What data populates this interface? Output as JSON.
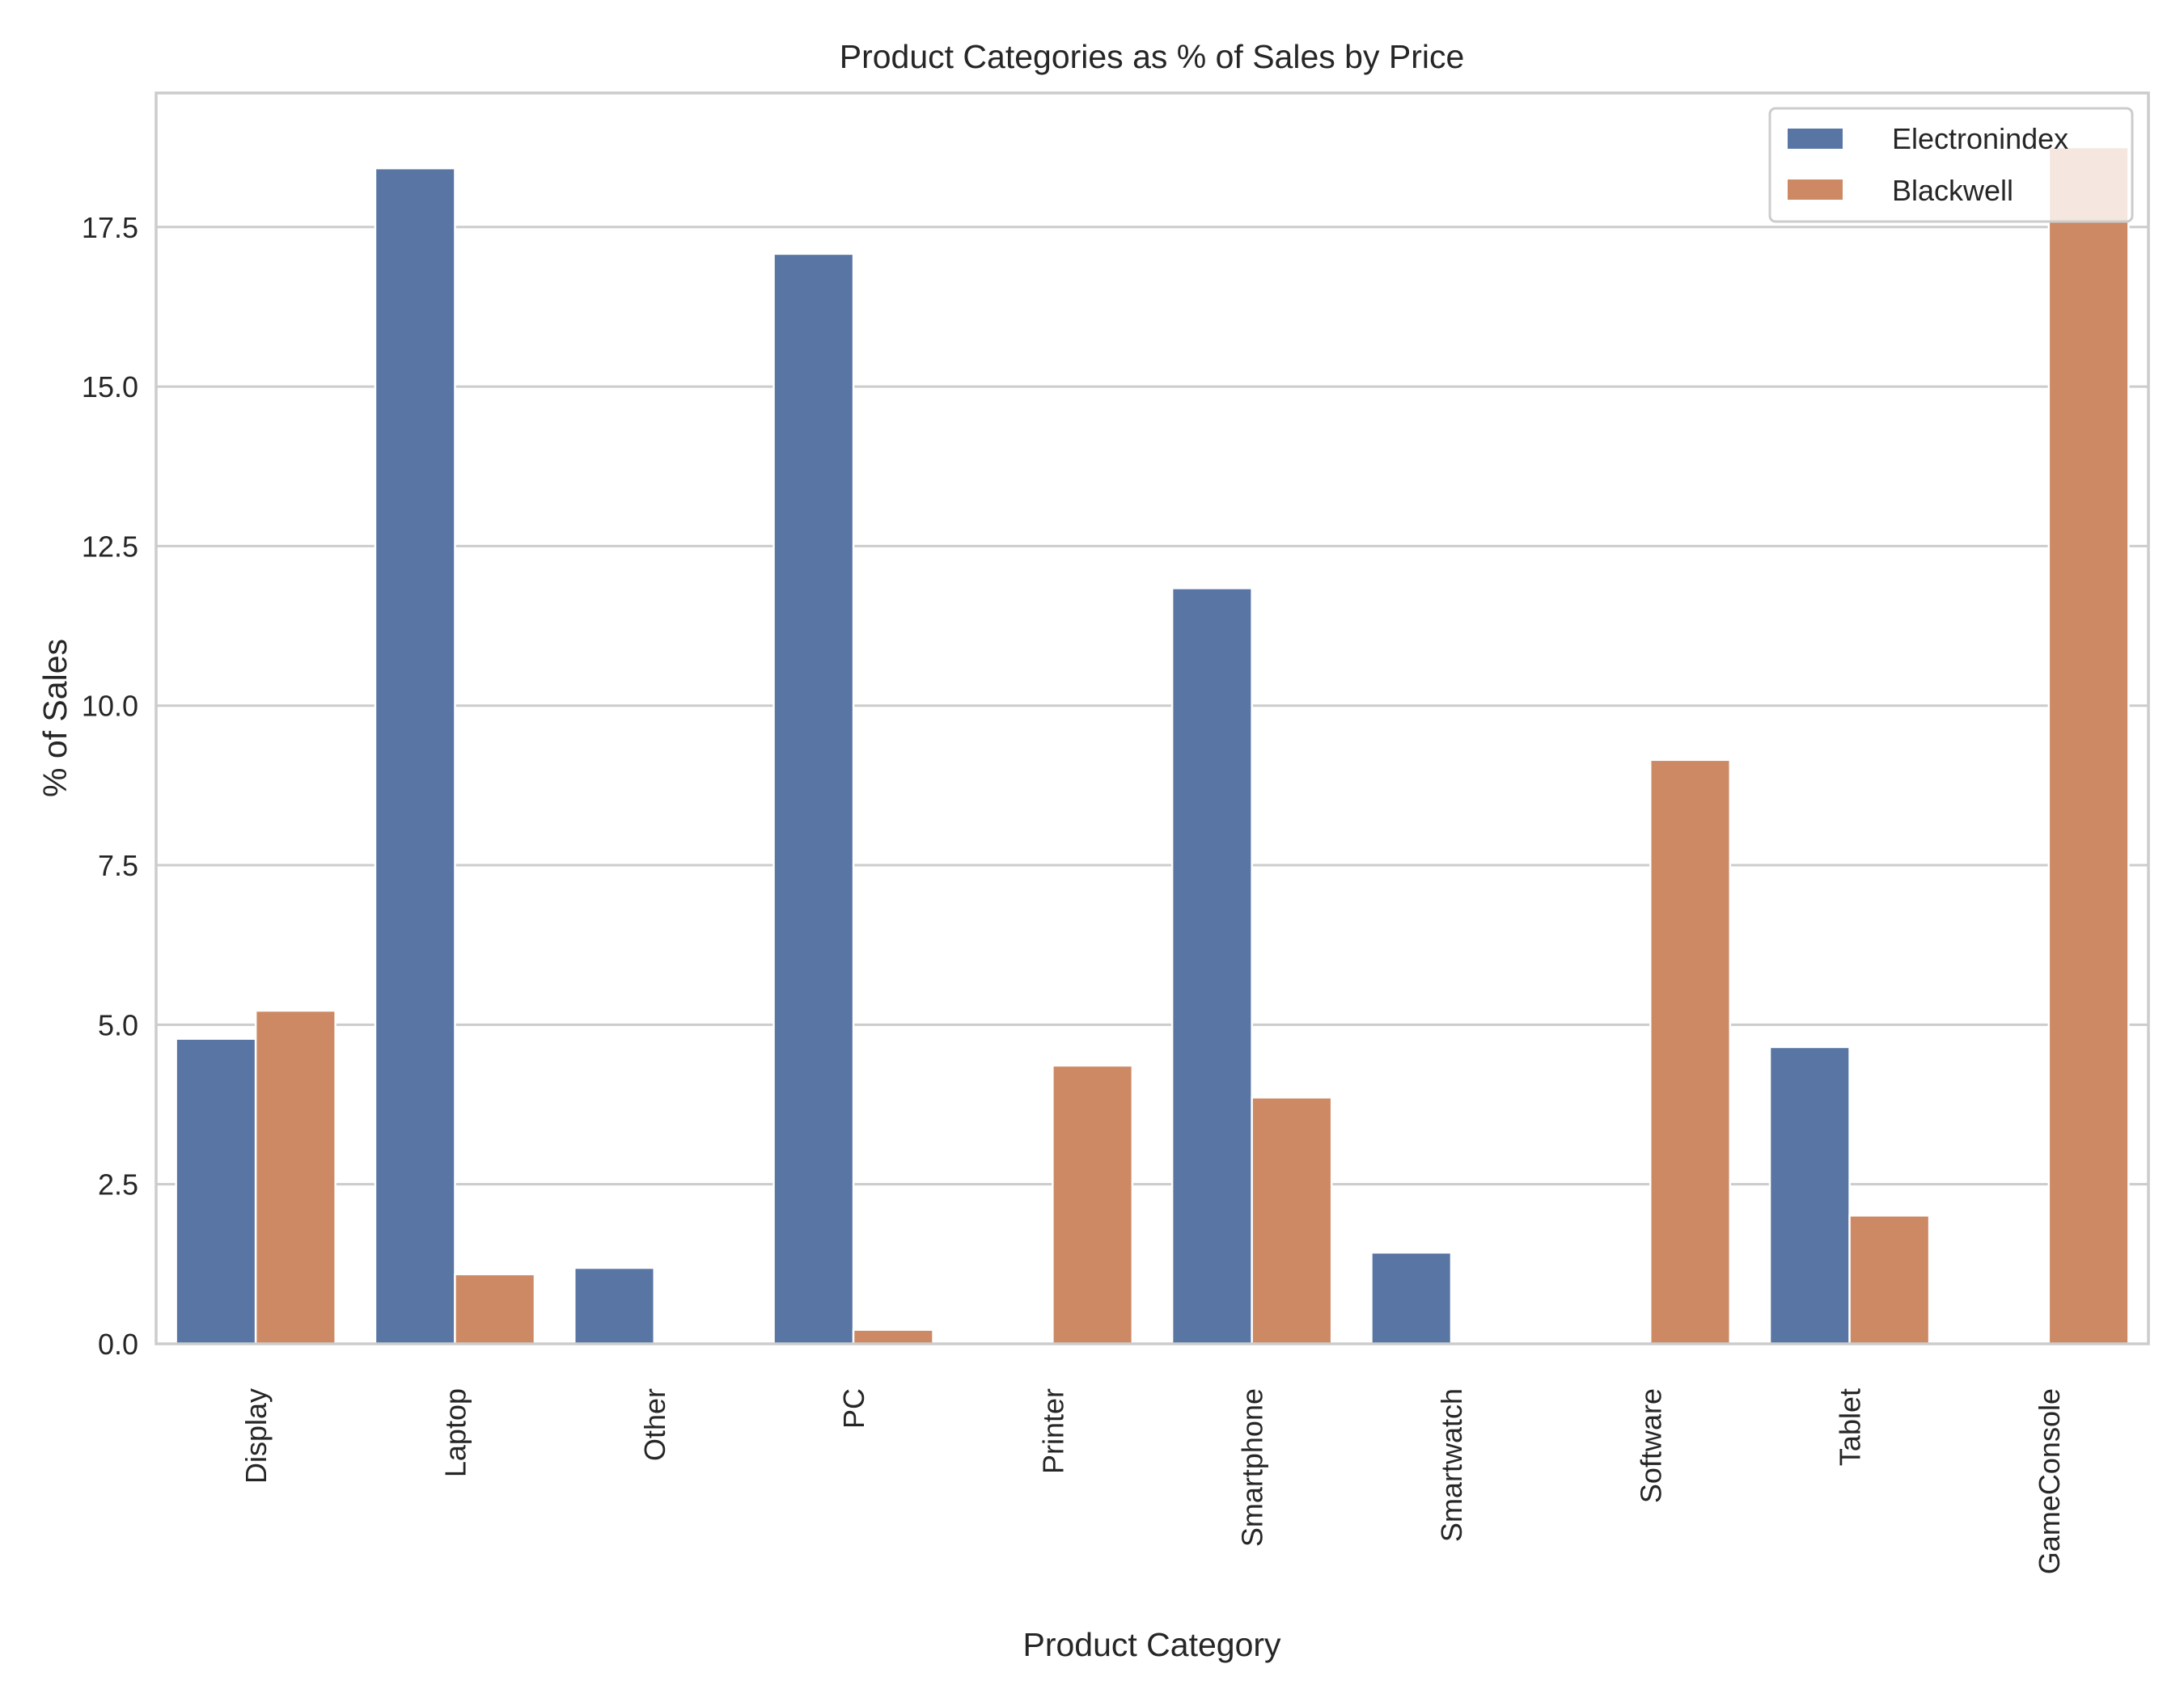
{
  "chart_data": {
    "type": "bar",
    "title": "Product Categories as % of Sales by Price",
    "xlabel": "Product Category",
    "ylabel": "% of Sales",
    "categories": [
      "Display",
      "Laptop",
      "Other",
      "PC",
      "Printer",
      "Smartphone",
      "Smartwatch",
      "Software",
      "Tablet",
      "GameConsole"
    ],
    "series": [
      {
        "name": "Electronindex",
        "color": "#5875a4",
        "values": [
          4.78,
          18.42,
          1.19,
          17.08,
          0.0,
          11.84,
          1.43,
          0.0,
          4.65,
          0.0
        ]
      },
      {
        "name": "Blackwell",
        "color": "#cc8963",
        "values": [
          5.22,
          1.09,
          0.0,
          0.22,
          4.36,
          3.86,
          0.0,
          9.15,
          2.01,
          18.75
        ]
      }
    ],
    "ylim": [
      0,
      19.6
    ],
    "yticks": [
      0.0,
      2.5,
      5.0,
      7.5,
      10.0,
      12.5,
      15.0,
      17.5
    ],
    "ytick_labels": [
      "0.0",
      "2.5",
      "5.0",
      "7.5",
      "10.0",
      "12.5",
      "15.0",
      "17.5"
    ],
    "grid": "horizontal",
    "legend_position": "top-right"
  }
}
